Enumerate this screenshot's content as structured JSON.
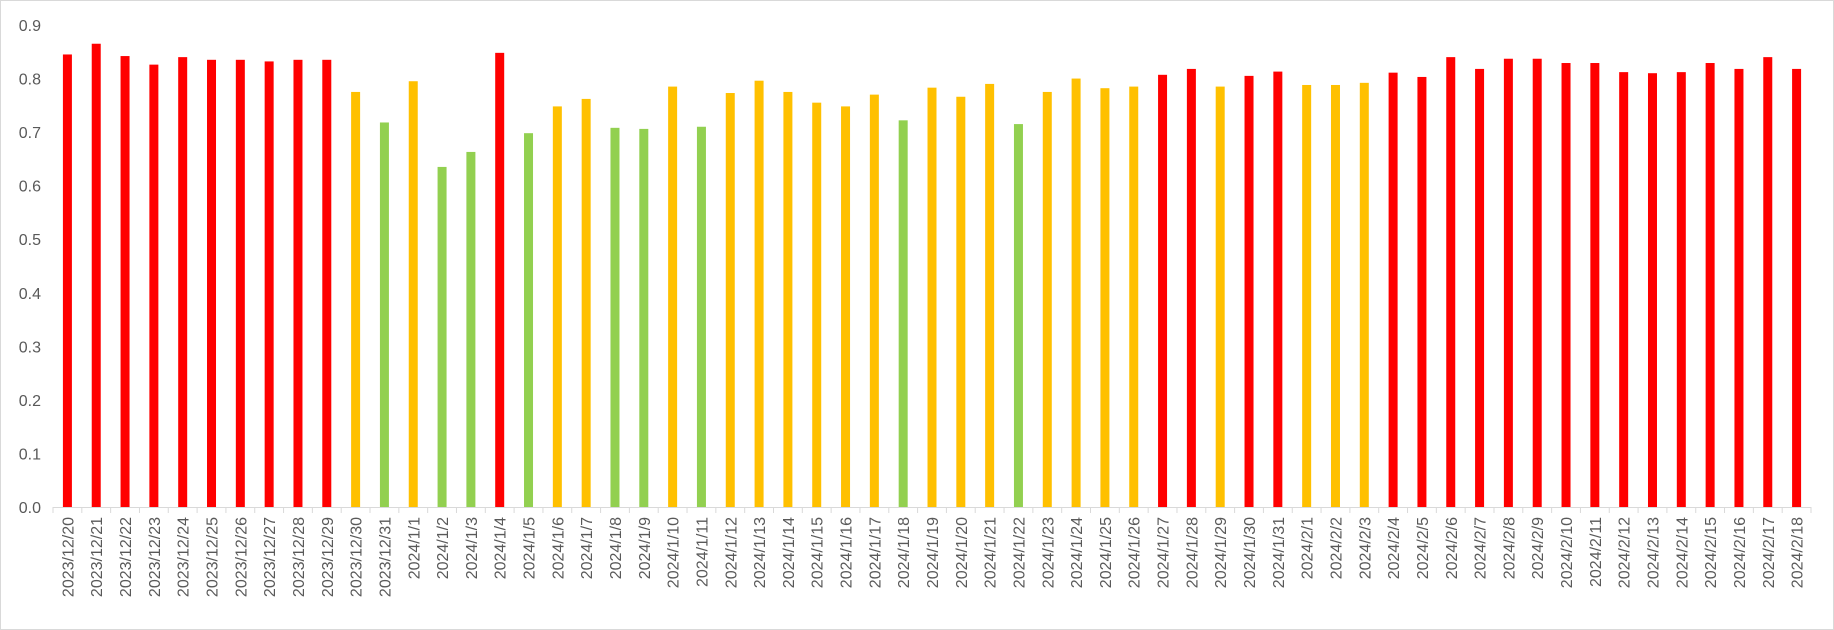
{
  "chart_data": {
    "type": "bar",
    "title": "",
    "xlabel": "",
    "ylabel": "",
    "ylim": [
      0,
      0.9
    ],
    "yticks": [
      "0.0",
      "0.1",
      "0.2",
      "0.3",
      "0.4",
      "0.5",
      "0.6",
      "0.7",
      "0.8",
      "0.9"
    ],
    "grid": false,
    "legend": "none",
    "colors": {
      "red": "#ff0000",
      "yellow": "#ffc000",
      "green": "#92d050"
    },
    "categories": [
      "2023/12/20",
      "2023/12/21",
      "2023/12/22",
      "2023/12/23",
      "2023/12/24",
      "2023/12/25",
      "2023/12/26",
      "2023/12/27",
      "2023/12/28",
      "2023/12/29",
      "2023/12/30",
      "2023/12/31",
      "2024/1/1",
      "2024/1/2",
      "2024/1/3",
      "2024/1/4",
      "2024/1/5",
      "2024/1/6",
      "2024/1/7",
      "2024/1/8",
      "2024/1/9",
      "2024/1/10",
      "2024/1/11",
      "2024/1/12",
      "2024/1/13",
      "2024/1/14",
      "2024/1/15",
      "2024/1/16",
      "2024/1/17",
      "2024/1/18",
      "2024/1/19",
      "2024/1/20",
      "2024/1/21",
      "2024/1/22",
      "2024/1/23",
      "2024/1/24",
      "2024/1/25",
      "2024/1/26",
      "2024/1/27",
      "2024/1/28",
      "2024/1/29",
      "2024/1/30",
      "2024/1/31",
      "2024/2/1",
      "2024/2/2",
      "2024/2/3",
      "2024/2/4",
      "2024/2/5",
      "2024/2/6",
      "2024/2/7",
      "2024/2/8",
      "2024/2/9",
      "2024/2/10",
      "2024/2/11",
      "2024/2/12",
      "2024/2/13",
      "2024/2/14",
      "2024/2/15",
      "2024/2/16",
      "2024/2/17",
      "2024/2/18"
    ],
    "values": [
      0.845,
      0.865,
      0.842,
      0.826,
      0.84,
      0.835,
      0.835,
      0.832,
      0.835,
      0.835,
      0.775,
      0.718,
      0.795,
      0.635,
      0.663,
      0.848,
      0.698,
      0.748,
      0.762,
      0.708,
      0.706,
      0.785,
      0.71,
      0.773,
      0.796,
      0.775,
      0.755,
      0.748,
      0.77,
      0.722,
      0.783,
      0.766,
      0.79,
      0.715,
      0.775,
      0.8,
      0.782,
      0.785,
      0.807,
      0.818,
      0.785,
      0.805,
      0.813,
      0.788,
      0.788,
      0.792,
      0.811,
      0.803,
      0.84,
      0.818,
      0.837,
      0.837,
      0.829,
      0.829,
      0.812,
      0.81,
      0.812,
      0.829,
      0.818,
      0.84,
      0.818
    ],
    "bar_colors": [
      "red",
      "red",
      "red",
      "red",
      "red",
      "red",
      "red",
      "red",
      "red",
      "red",
      "yellow",
      "green",
      "yellow",
      "green",
      "green",
      "red",
      "green",
      "yellow",
      "yellow",
      "green",
      "green",
      "yellow",
      "green",
      "yellow",
      "yellow",
      "yellow",
      "yellow",
      "yellow",
      "yellow",
      "green",
      "yellow",
      "yellow",
      "yellow",
      "green",
      "yellow",
      "yellow",
      "yellow",
      "yellow",
      "red",
      "red",
      "yellow",
      "red",
      "red",
      "yellow",
      "yellow",
      "yellow",
      "red",
      "red",
      "red",
      "red",
      "red",
      "red",
      "red",
      "red",
      "red",
      "red",
      "red",
      "red",
      "red",
      "red",
      "red"
    ]
  }
}
